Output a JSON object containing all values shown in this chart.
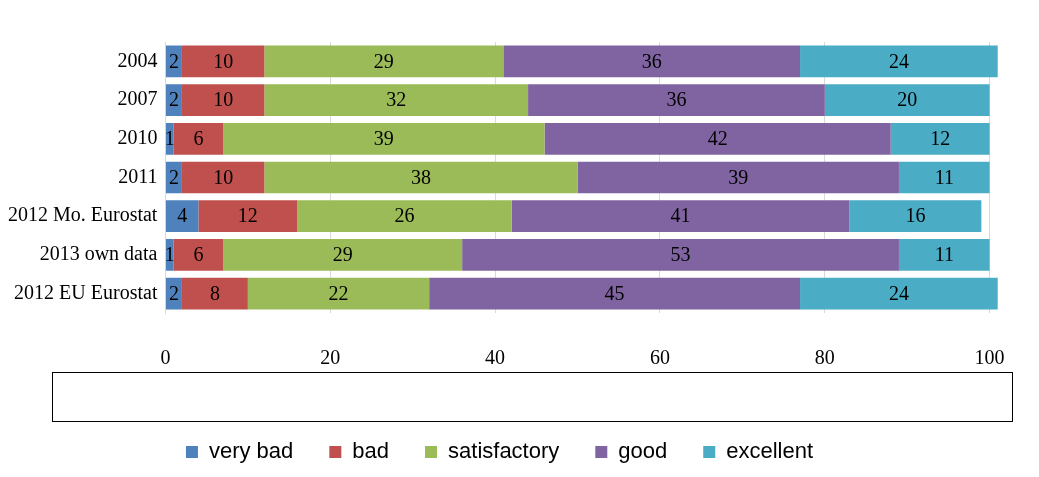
{
  "chart_data": {
    "type": "bar",
    "orientation": "horizontal",
    "stacked": true,
    "data_labels": true,
    "grid": "x",
    "legend": "bottom",
    "categories": [
      "2004",
      "2007",
      "2010",
      "2011",
      "2012 Mo. Eurostat",
      "2013 own data",
      "2012 EU Eurostat"
    ],
    "xlim": [
      0,
      101
    ],
    "xticks": [
      0,
      20,
      40,
      60,
      80,
      100
    ],
    "series": [
      {
        "name": "very bad",
        "color": "#4f81bd",
        "values": [
          2,
          2,
          1,
          2,
          4,
          1,
          2
        ]
      },
      {
        "name": "bad",
        "color": "#c0504d",
        "values": [
          10,
          10,
          6,
          10,
          12,
          6,
          8
        ]
      },
      {
        "name": "satisfactory",
        "color": "#9bbb59",
        "values": [
          29,
          32,
          39,
          38,
          26,
          29,
          22
        ]
      },
      {
        "name": "good",
        "color": "#8064a2",
        "values": [
          36,
          36,
          42,
          39,
          41,
          53,
          45
        ]
      },
      {
        "name": "excellent",
        "color": "#4bacc6",
        "values": [
          24,
          20,
          12,
          11,
          16,
          11,
          24
        ]
      }
    ]
  }
}
